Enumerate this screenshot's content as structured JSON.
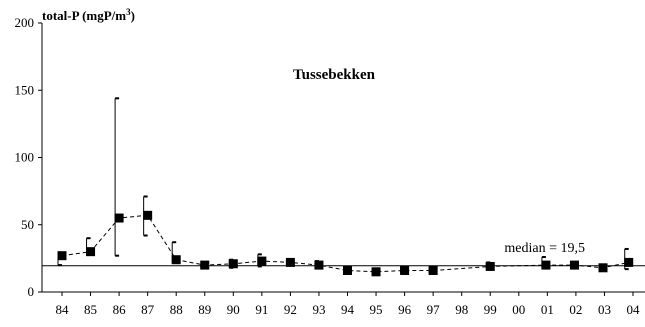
{
  "chart_data": {
    "type": "line",
    "title": "Tussebekken",
    "ylabel_main": "total-P (mgP/m",
    "ylabel_sup": "3",
    "ylabel_end": ")",
    "ylim": [
      0,
      200
    ],
    "yticks": [
      0,
      50,
      100,
      150,
      200
    ],
    "ytick_labels": [
      "0",
      "50",
      "100",
      "150",
      "200"
    ],
    "categories": [
      "84",
      "85",
      "86",
      "87",
      "88",
      "89",
      "90",
      "91",
      "92",
      "93",
      "94",
      "95",
      "96",
      "97",
      "98",
      "99",
      "00",
      "01",
      "02",
      "03",
      "04"
    ],
    "series": [
      {
        "line_style": "dashed",
        "marker": "square",
        "points": [
          {
            "x": 84.0,
            "y": 27,
            "max": 29,
            "min": 20
          },
          {
            "x": 85.0,
            "y": 30,
            "max": 40,
            "min": 28
          },
          {
            "x": 86.0,
            "y": 55,
            "max": 144,
            "min": 27
          },
          {
            "x": 87.0,
            "y": 57,
            "max": 71,
            "min": 42
          },
          {
            "x": 88.0,
            "y": 24,
            "max": 37,
            "min": 22
          },
          {
            "x": 89.0,
            "y": 20,
            "max": 21,
            "min": 18
          },
          {
            "x": 90.0,
            "y": 21,
            "max": 24,
            "min": 18
          },
          {
            "x": 91.0,
            "y": 23,
            "max": 28,
            "min": 19
          },
          {
            "x": 92.0,
            "y": 22,
            "max": 23,
            "min": 20
          },
          {
            "x": 93.0,
            "y": 20,
            "max": 23,
            "min": 18
          },
          {
            "x": 94.0,
            "y": 16,
            "max": 18,
            "min": 15
          },
          {
            "x": 95.0,
            "y": 15,
            "max": 17,
            "min": 14
          },
          {
            "x": 96.0,
            "y": 16,
            "max": 19,
            "min": 14
          },
          {
            "x": 97.0,
            "y": 16,
            "max": 19,
            "min": 14
          },
          {
            "x": 99.0,
            "y": 19,
            "max": 22,
            "min": 17
          },
          {
            "x": 100.95,
            "y": 20,
            "max": 26,
            "min": 18
          },
          {
            "x": 101.95,
            "y": 20,
            "max": 22,
            "min": 18
          },
          {
            "x": 102.95,
            "y": 18,
            "max": 20,
            "min": 17
          },
          {
            "x": 103.85,
            "y": 22,
            "max": 32,
            "min": 17
          }
        ]
      }
    ],
    "median": {
      "value": 19.5,
      "label": "median = 19,5"
    },
    "grid": false,
    "legend": "none"
  }
}
